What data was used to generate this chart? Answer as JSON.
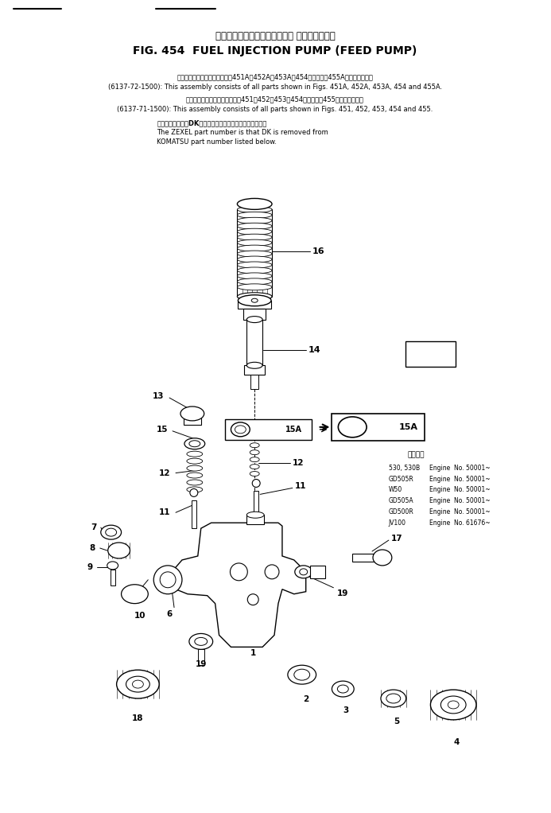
{
  "title_jp": "フェルインジェクションポンプ フィードポンプ",
  "title_en": "FIG. 454  FUEL INJECTION PUMP (FEED PUMP)",
  "header_line1_jp": "このアセンブリの構成部品は図451A、452A、453A、454図および図455A図を含みます。",
  "header_line1_en": "(6137-72-1500): This assembly consists of all parts shown in Figs. 451A, 452A, 453A, 454 and 455A.",
  "header_line2_jp": "このアセンブリの構成部品は図451、452、453、454図および図455図を含みます。",
  "header_line2_en": "(6137-71-1500): This assembly consists of all parts shown in Figs. 451, 452, 453, 454 and 455.",
  "header_note_jp": "品番のメーカ記号DKを引いたものがゼクセルの品番です。",
  "header_note_en1": "The ZEXEL part number is that DK is removed from",
  "header_note_en2": "KOMATSU part number listed below.",
  "applicability_title": "適用車種",
  "applicability": [
    [
      "530, 530B",
      "Engine  No. 50001~"
    ],
    [
      "GD505R",
      "Engine  No. 50001~"
    ],
    [
      "W50",
      "Engine  No. 50001~"
    ],
    [
      "GD505A",
      "Engine  No. 50001~"
    ],
    [
      "GD500R",
      "Engine  No. 50001~"
    ],
    [
      "JV100",
      "Engine  No. 61676~"
    ]
  ]
}
